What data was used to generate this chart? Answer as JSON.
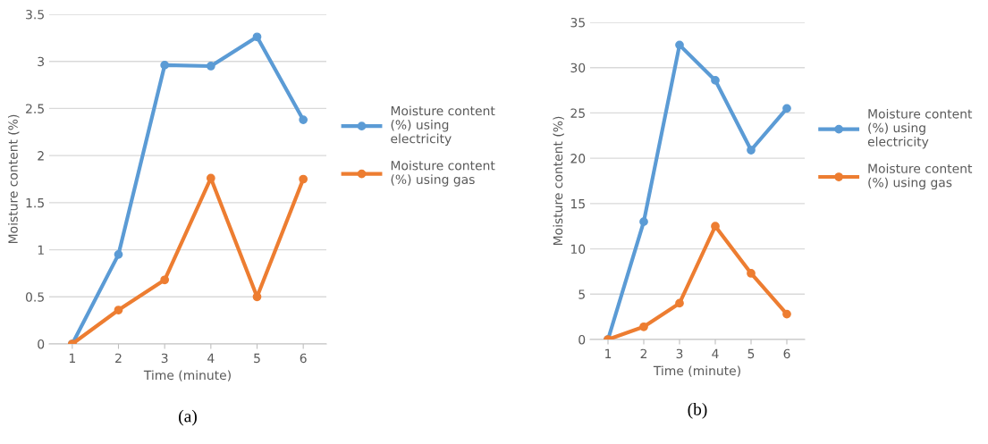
{
  "chart_data": [
    {
      "type": "line",
      "xlabel": "Time (minute)",
      "ylabel": "Moisture content (%)",
      "categories": [
        "1",
        "2",
        "3",
        "4",
        "5",
        "6"
      ],
      "series": [
        {
          "name": "Moisture content\n(%) using\nelectricity",
          "color": "#5b9bd5",
          "values": [
            0,
            0.95,
            2.96,
            2.95,
            3.26,
            2.38
          ]
        },
        {
          "name": "Moisture content\n(%) using gas",
          "color": "#ed7d31",
          "values": [
            0,
            0.36,
            0.68,
            1.76,
            0.5,
            1.75
          ]
        }
      ],
      "ylim": [
        0,
        3.5
      ],
      "yticks": [
        0,
        0.5,
        1,
        1.5,
        2,
        2.5,
        3,
        3.5
      ],
      "grid": "y",
      "legend": "right",
      "marker": "circle",
      "line_style": "solid",
      "annotations": [
        "(a)"
      ]
    },
    {
      "type": "line",
      "xlabel": "Time (minute)",
      "ylabel": "Moisture content (%)",
      "categories": [
        "1",
        "2",
        "3",
        "4",
        "5",
        "6"
      ],
      "series": [
        {
          "name": "Moisture content\n(%) using\nelectricity",
          "color": "#5b9bd5",
          "values": [
            0,
            13.0,
            32.5,
            28.6,
            20.9,
            25.5
          ]
        },
        {
          "name": "Moisture content\n(%) using gas",
          "color": "#ed7d31",
          "values": [
            0,
            1.4,
            4.0,
            12.5,
            7.3,
            2.8
          ]
        }
      ],
      "ylim": [
        0,
        35
      ],
      "yticks": [
        0,
        5,
        10,
        15,
        20,
        25,
        30,
        35
      ],
      "grid": "y",
      "legend": "right",
      "marker": "circle",
      "line_style": "solid",
      "annotations": [
        "(b)"
      ]
    }
  ]
}
